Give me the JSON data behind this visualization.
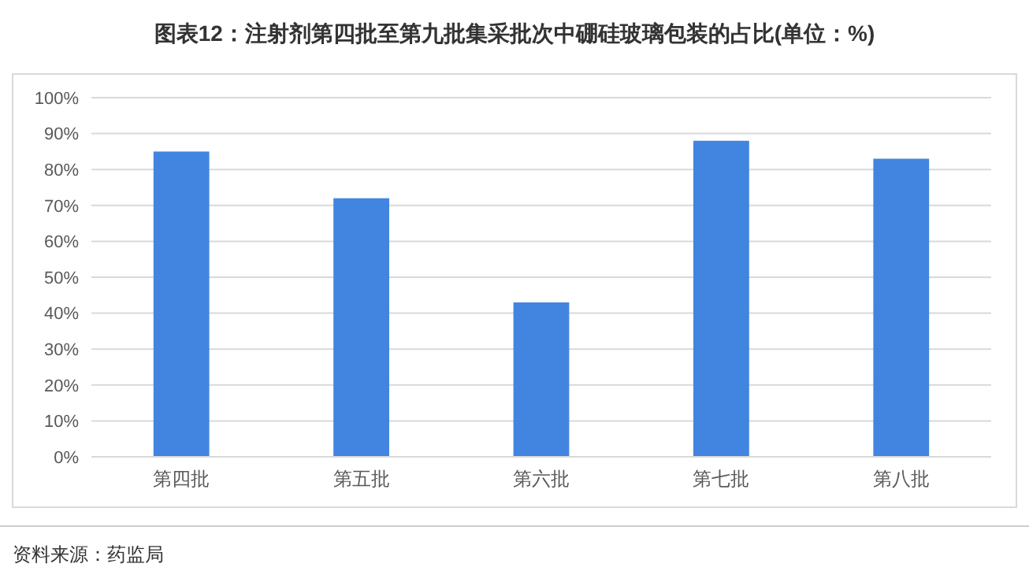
{
  "chart_data": {
    "type": "bar",
    "title": "图表12：注射剂第四批至第九批集采批次中硼硅玻璃包装的占比(单位：%)",
    "categories": [
      "第四批",
      "第五批",
      "第六批",
      "第七批",
      "第八批"
    ],
    "values": [
      85,
      72,
      43,
      88,
      83
    ],
    "color": "#4185e0",
    "ylim": [
      0,
      100
    ],
    "yticks": [
      {
        "value": 0,
        "label": "0%"
      },
      {
        "value": 10,
        "label": "10%"
      },
      {
        "value": 20,
        "label": "20%"
      },
      {
        "value": 30,
        "label": "30%"
      },
      {
        "value": 40,
        "label": "40%"
      },
      {
        "value": 50,
        "label": "50%"
      },
      {
        "value": 60,
        "label": "60%"
      },
      {
        "value": 70,
        "label": "70%"
      },
      {
        "value": 80,
        "label": "80%"
      },
      {
        "value": 90,
        "label": "90%"
      },
      {
        "value": 100,
        "label": "100%"
      }
    ],
    "grid": "y",
    "annotations": [
      "资料来源：药监局"
    ]
  }
}
